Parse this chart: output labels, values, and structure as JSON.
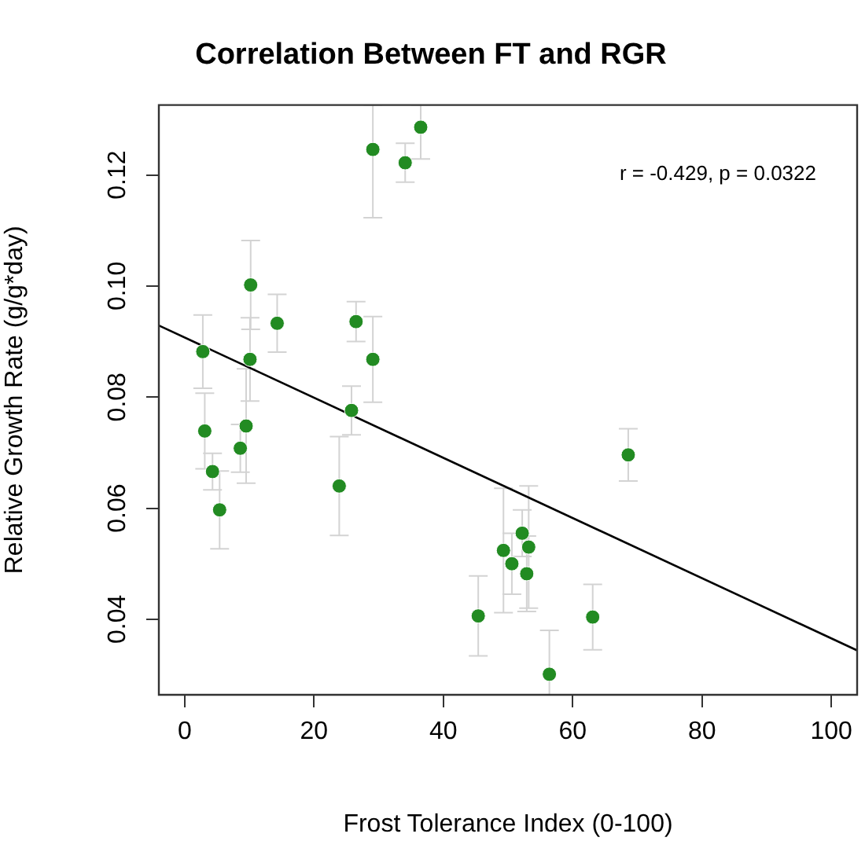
{
  "chart_data": {
    "type": "scatter",
    "title": "Correlation Between FT and RGR",
    "xlabel": "Frost Tolerance Index (0-100)",
    "ylabel": "Relative Growth Rate (g/g*day)",
    "annotations": [
      "r = -0.429, p = 0.0322"
    ],
    "xlim": [
      -4,
      104
    ],
    "xticks": [
      0,
      20,
      40,
      60,
      80,
      100
    ],
    "ylim": [
      0.0264,
      0.1326
    ],
    "yticks": [
      0.04,
      0.06,
      0.08,
      {
        "value": 0.1,
        "label": "0.10"
      },
      0.12
    ],
    "grid": false,
    "marker": "circle",
    "series": [
      {
        "type": "scatter",
        "color": "#228b22",
        "x": [
          2.8,
          3.1,
          4.3,
          5.4,
          8.6,
          9.5,
          10.1,
          10.2,
          14.3,
          23.9,
          25.8,
          26.5,
          29.1,
          29.1,
          34.1,
          36.5,
          45.4,
          49.3,
          50.6,
          52.2,
          52.9,
          53.2,
          56.4,
          63.1,
          68.6
        ],
        "values": [
          0.0882,
          0.0739,
          0.0666,
          0.0597,
          0.0708,
          0.0748,
          0.0868,
          0.1002,
          0.0933,
          0.064,
          0.0776,
          0.0936,
          0.0868,
          0.1246,
          0.1222,
          0.1286,
          0.0406,
          0.0524,
          0.05,
          0.0555,
          0.0482,
          0.053,
          0.0301,
          0.0404,
          0.0696
        ],
        "errors": [
          0.0066,
          0.0068,
          0.0033,
          0.007,
          0.0043,
          0.0103,
          0.0075,
          0.008,
          0.0052,
          0.0089,
          0.0044,
          0.0036,
          0.0077,
          [
            0.1123,
            0.1326
          ],
          0.0035,
          [
            0.1229,
            0.1326
          ],
          0.0072,
          0.0112,
          0.0055,
          0.0042,
          0.0068,
          0.011,
          [
            0.0264,
            0.038
          ],
          0.0059,
          0.0047
        ]
      },
      {
        "type": "line",
        "color": "#000000",
        "marker": "none",
        "line_style": "solid",
        "x": [
          -4,
          104
        ],
        "values": [
          0.0929,
          0.0344
        ]
      }
    ]
  }
}
